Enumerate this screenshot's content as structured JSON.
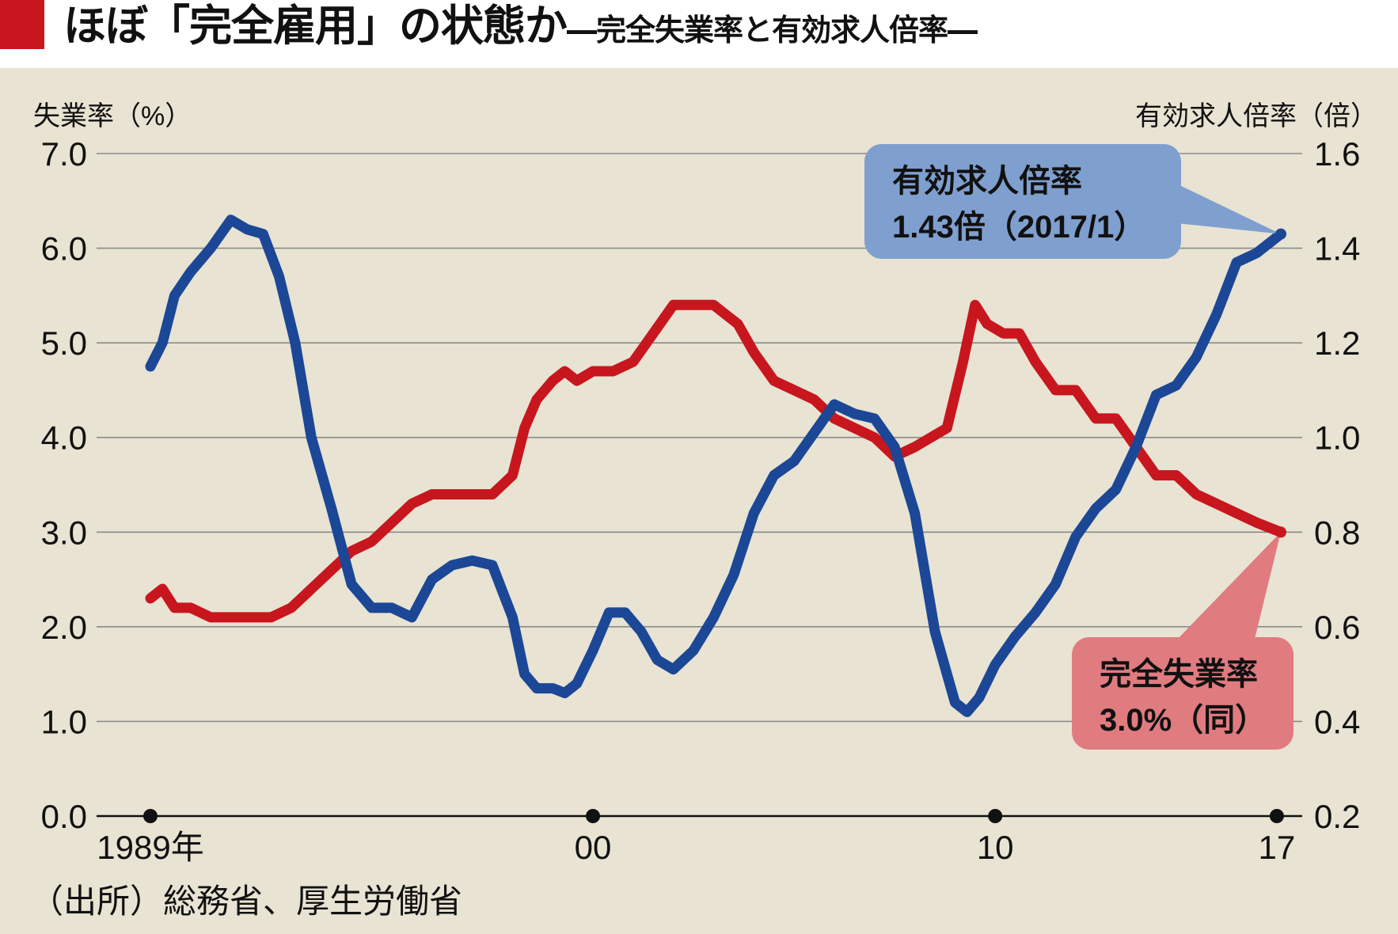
{
  "title": {
    "main": "ほぼ「完全雇用」の状態か",
    "sub": "―完全失業率と有効求人倍率―"
  },
  "source": "（出所）総務省、厚生労働省",
  "colors": {
    "unemployment": "#c8161e",
    "job_ratio": "#1b4796",
    "background": "#e8e3d2",
    "title_mark": "#c8161e",
    "callout_job_ratio": "#7f9fcf",
    "callout_unemployment": "#e07b80"
  },
  "chart_data": {
    "type": "line",
    "title": "ほぼ「完全雇用」の状態か",
    "subtitle": "―完全失業率と有効求人倍率―",
    "ylabel_left": "失業率（%）",
    "ylabel_right": "有効求人倍率（倍）",
    "ylim_left": [
      0,
      7
    ],
    "ylim_right": [
      0.2,
      1.6
    ],
    "yticks_left": [
      "0.0",
      "1.0",
      "2.0",
      "3.0",
      "4.0",
      "5.0",
      "6.0",
      "7.0"
    ],
    "yticks_right": [
      "0.2",
      "0.4",
      "0.6",
      "0.8",
      "1.0",
      "1.2",
      "1.4",
      "1.6"
    ],
    "x_ticks": [
      {
        "x": 1989,
        "label": "1989年"
      },
      {
        "x": 2000,
        "label": "00"
      },
      {
        "x": 2010,
        "label": "10"
      },
      {
        "x": 2017,
        "label": "17"
      }
    ],
    "xlim": [
      1989.0,
      2017.1
    ],
    "grid": true,
    "series": [
      {
        "name": "完全失業率",
        "axis": "left",
        "x": [
          1989.0,
          1989.3,
          1989.6,
          1990.0,
          1990.5,
          1991.0,
          1991.5,
          1992.0,
          1992.5,
          1993.0,
          1993.5,
          1994.0,
          1994.5,
          1995.0,
          1995.5,
          1996.0,
          1996.5,
          1997.0,
          1997.5,
          1998.0,
          1998.3,
          1998.6,
          1999.0,
          1999.3,
          1999.6,
          2000.0,
          2000.5,
          2001.0,
          2001.5,
          2002.0,
          2002.5,
          2003.0,
          2003.3,
          2003.6,
          2004.0,
          2004.5,
          2005.0,
          2005.5,
          2006.0,
          2006.5,
          2007.0,
          2007.5,
          2008.0,
          2008.4,
          2008.8,
          2009.2,
          2009.5,
          2009.8,
          2010.2,
          2010.6,
          2011.0,
          2011.5,
          2012.0,
          2012.5,
          2013.0,
          2013.5,
          2014.0,
          2014.5,
          2015.0,
          2015.5,
          2016.0,
          2016.5,
          2017.1
        ],
        "values": [
          2.3,
          2.4,
          2.2,
          2.2,
          2.1,
          2.1,
          2.1,
          2.1,
          2.2,
          2.4,
          2.6,
          2.8,
          2.9,
          3.1,
          3.3,
          3.4,
          3.4,
          3.4,
          3.4,
          3.6,
          4.1,
          4.4,
          4.6,
          4.7,
          4.6,
          4.7,
          4.7,
          4.8,
          5.1,
          5.4,
          5.4,
          5.4,
          5.3,
          5.2,
          4.9,
          4.6,
          4.5,
          4.4,
          4.2,
          4.1,
          4.0,
          3.8,
          3.9,
          4.0,
          4.1,
          4.8,
          5.4,
          5.2,
          5.1,
          5.1,
          4.8,
          4.5,
          4.5,
          4.2,
          4.2,
          3.9,
          3.6,
          3.6,
          3.4,
          3.3,
          3.2,
          3.1,
          3.0
        ]
      },
      {
        "name": "有効求人倍率",
        "axis": "right",
        "x": [
          1989.0,
          1989.3,
          1989.6,
          1990.0,
          1990.5,
          1991.0,
          1991.4,
          1991.8,
          1992.2,
          1992.6,
          1993.0,
          1993.5,
          1994.0,
          1994.5,
          1995.0,
          1995.5,
          1996.0,
          1996.5,
          1997.0,
          1997.5,
          1998.0,
          1998.3,
          1998.6,
          1999.0,
          1999.3,
          1999.6,
          2000.0,
          2000.4,
          2000.8,
          2001.2,
          2001.6,
          2002.0,
          2002.5,
          2003.0,
          2003.5,
          2004.0,
          2004.5,
          2005.0,
          2005.5,
          2006.0,
          2006.5,
          2007.0,
          2007.5,
          2008.0,
          2008.5,
          2009.0,
          2009.3,
          2009.6,
          2010.0,
          2010.5,
          2011.0,
          2011.5,
          2012.0,
          2012.5,
          2013.0,
          2013.5,
          2014.0,
          2014.5,
          2015.0,
          2015.5,
          2016.0,
          2016.5,
          2017.1
        ],
        "values": [
          1.15,
          1.2,
          1.3,
          1.35,
          1.4,
          1.46,
          1.44,
          1.43,
          1.34,
          1.2,
          1.0,
          0.85,
          0.69,
          0.64,
          0.64,
          0.62,
          0.7,
          0.73,
          0.74,
          0.73,
          0.62,
          0.5,
          0.47,
          0.47,
          0.46,
          0.48,
          0.55,
          0.63,
          0.63,
          0.59,
          0.53,
          0.51,
          0.55,
          0.62,
          0.71,
          0.84,
          0.92,
          0.95,
          1.01,
          1.07,
          1.05,
          1.04,
          0.98,
          0.84,
          0.59,
          0.44,
          0.42,
          0.45,
          0.52,
          0.58,
          0.63,
          0.69,
          0.79,
          0.85,
          0.89,
          0.98,
          1.09,
          1.11,
          1.17,
          1.26,
          1.37,
          1.39,
          1.43
        ]
      }
    ],
    "annotations": [
      {
        "series": "有効求人倍率",
        "line1": "有効求人倍率",
        "line2": "1.43倍（2017/1）"
      },
      {
        "series": "完全失業率",
        "line1": "完全失業率",
        "line2": "3.0%（同）"
      }
    ]
  }
}
